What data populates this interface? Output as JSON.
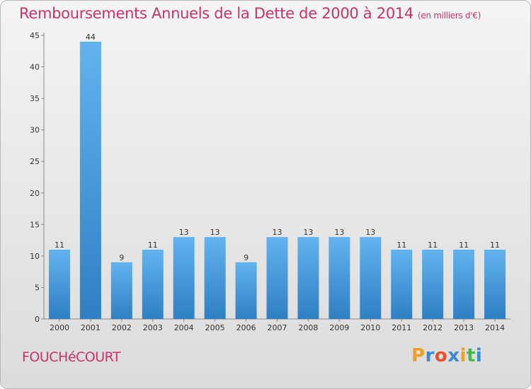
{
  "header": {
    "title": "Remboursements Annuels de la Dette de 2000 à 2014",
    "unit": "(en milliers d'€)"
  },
  "footer": {
    "place": "FOUCHéCOURT",
    "logo_letters": [
      "P",
      "r",
      "o",
      "x",
      "i",
      "t",
      "i"
    ],
    "logo_colors": [
      "#f0a020",
      "#3a8ad8",
      "#e84f2a",
      "#3a8ad8",
      "#f0a020",
      "#48b848",
      "#3a8ad8"
    ]
  },
  "chart_data": {
    "type": "bar",
    "title": "Remboursements Annuels de la Dette de 2000 à 2014",
    "xlabel": "",
    "ylabel": "",
    "categories": [
      "2000",
      "2001",
      "2002",
      "2003",
      "2004",
      "2005",
      "2006",
      "2007",
      "2008",
      "2009",
      "2010",
      "2011",
      "2012",
      "2013",
      "2014"
    ],
    "values": [
      11,
      44,
      9,
      11,
      13,
      13,
      9,
      13,
      13,
      13,
      13,
      11,
      11,
      11,
      11
    ],
    "ylim": [
      0,
      45
    ],
    "yticks": [
      0,
      5,
      10,
      15,
      20,
      25,
      30,
      35,
      40,
      45
    ],
    "grid": false,
    "bar_color": "#4a9ee0"
  }
}
